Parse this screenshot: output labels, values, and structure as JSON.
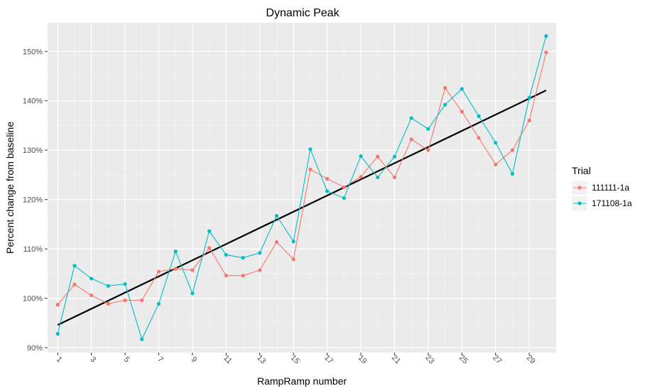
{
  "chart_data": {
    "type": "line",
    "title": "Dynamic Peak",
    "xlabel": "RampRamp number",
    "ylabel": "Percent change from baseline",
    "x": [
      1,
      2,
      3,
      4,
      5,
      6,
      7,
      8,
      9,
      10,
      11,
      12,
      13,
      14,
      15,
      16,
      17,
      18,
      19,
      20,
      21,
      22,
      23,
      24,
      25,
      26,
      27,
      28,
      29,
      30
    ],
    "x_tick_labels": [
      "1",
      "3",
      "5",
      "7",
      "9",
      "11",
      "13",
      "15",
      "17",
      "19",
      "21",
      "23",
      "25",
      "27",
      "29"
    ],
    "x_tick_values": [
      1,
      3,
      5,
      7,
      9,
      11,
      13,
      15,
      17,
      19,
      21,
      23,
      25,
      27,
      29
    ],
    "xlim": [
      0.4,
      30.6
    ],
    "y_tick_labels": [
      "90%",
      "100%",
      "110%",
      "120%",
      "130%",
      "140%",
      "150%"
    ],
    "y_tick_values": [
      90,
      100,
      110,
      120,
      130,
      140,
      150
    ],
    "ylim": [
      89.0,
      155.8
    ],
    "grid": true,
    "legend": {
      "title": "Trial",
      "placement": "right"
    },
    "series": [
      {
        "name": "111111-1a",
        "color": "#F8766D",
        "values": [
          98.7,
          102.8,
          100.6,
          98.9,
          99.6,
          99.6,
          105.4,
          106.0,
          105.7,
          110.2,
          104.6,
          104.6,
          105.7,
          111.4,
          107.9,
          126.1,
          124.2,
          122.5,
          124.6,
          128.7,
          124.5,
          132.2,
          130.0,
          142.6,
          137.8,
          132.5,
          127.1,
          130.0,
          136.0,
          149.8
        ]
      },
      {
        "name": "171108-1a",
        "color": "#00BFC4",
        "values": [
          92.8,
          106.6,
          104.0,
          102.5,
          102.9,
          91.7,
          98.9,
          109.5,
          101.0,
          113.6,
          108.8,
          108.2,
          109.2,
          116.7,
          111.5,
          130.2,
          121.7,
          120.3,
          128.8,
          124.5,
          128.7,
          136.5,
          134.3,
          139.2,
          142.4,
          136.9,
          131.5,
          125.2,
          140.6,
          153.1
        ]
      }
    ],
    "trend_line": {
      "color": "#000000",
      "x": [
        1,
        30
      ],
      "y": [
        94.6,
        142.1
      ]
    }
  }
}
